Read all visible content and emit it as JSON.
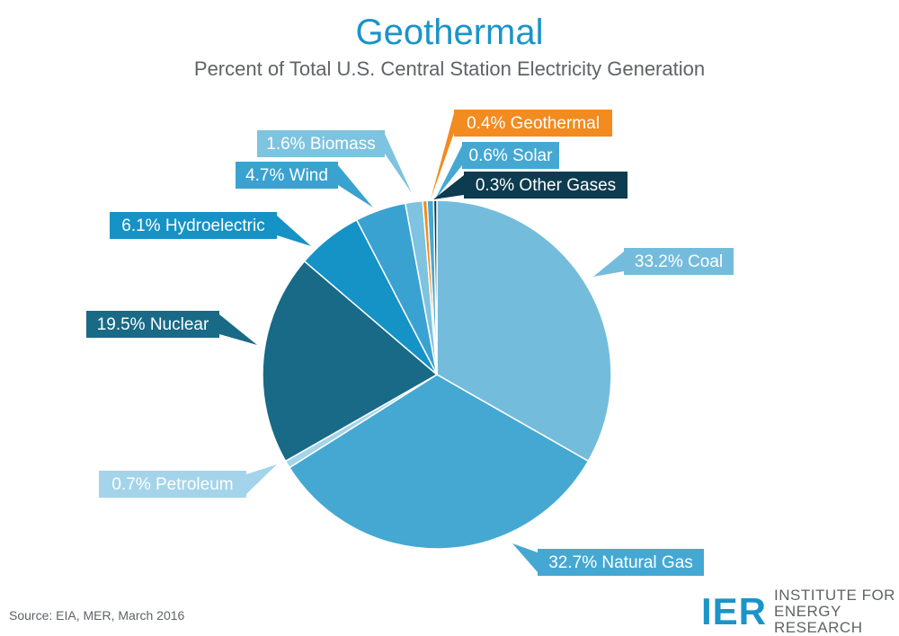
{
  "chart_data": {
    "type": "pie",
    "title": "Geothermal",
    "subtitle": "Percent of Total U.S. Central Station Electricity Generation",
    "slices": [
      {
        "name": "Coal",
        "value": 33.2,
        "label": "33.2% Coal",
        "color": "#74bcdc"
      },
      {
        "name": "Natural Gas",
        "value": 32.7,
        "label": "32.7% Natural Gas",
        "color": "#45a8d3"
      },
      {
        "name": "Petroleum",
        "value": 0.7,
        "label": "0.7% Petroleum",
        "color": "#a3d4ea"
      },
      {
        "name": "Nuclear",
        "value": 19.5,
        "label": "19.5% Nuclear",
        "color": "#186a87"
      },
      {
        "name": "Hydroelectric",
        "value": 6.1,
        "label": "6.1% Hydroelectric",
        "color": "#1592c6"
      },
      {
        "name": "Wind",
        "value": 4.7,
        "label": "4.7% Wind",
        "color": "#3aa2d0"
      },
      {
        "name": "Biomass",
        "value": 1.6,
        "label": "1.6% Biomass",
        "color": "#7ec3e0"
      },
      {
        "name": "Geothermal",
        "value": 0.4,
        "label": "0.4% Geothermal",
        "color": "#f28b20"
      },
      {
        "name": "Solar",
        "value": 0.6,
        "label": "0.6% Solar",
        "color": "#45a8d3"
      },
      {
        "name": "Other Gases",
        "value": 0.3,
        "label": "0.3% Other Gases",
        "color": "#0d3b4f"
      }
    ]
  },
  "footer": {
    "source": "Source: EIA, MER, March 2016",
    "logo_mark": "IER",
    "logo_line1": "INSTITUTE FOR",
    "logo_line2": "ENERGY RESEARCH"
  },
  "colors": {
    "title": "#1a94c9",
    "text": "#5f6366"
  }
}
